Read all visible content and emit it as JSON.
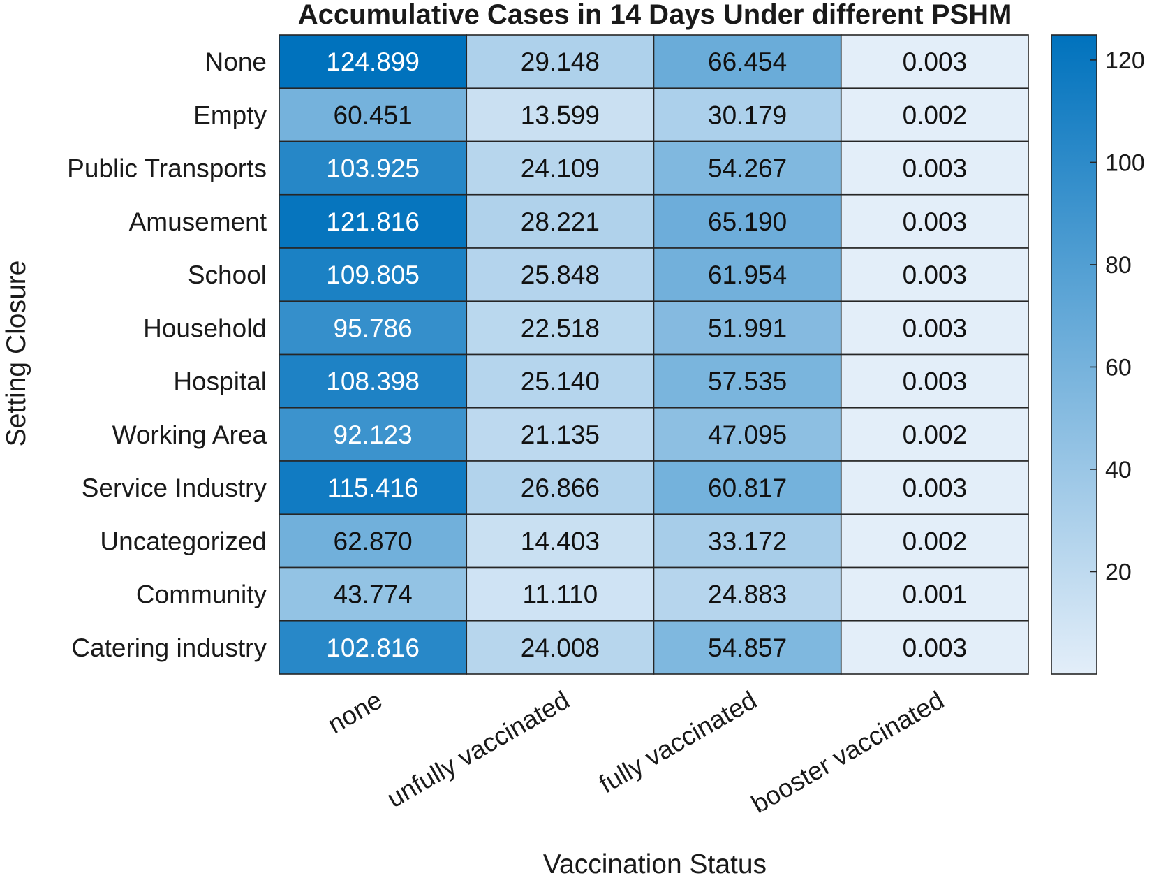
{
  "chart_data": {
    "type": "heatmap",
    "title": "Accumulative Cases in 14 Days Under different PSHM",
    "xlabel": "Vaccination Status",
    "ylabel": "Setting Closure",
    "columns": [
      "none",
      "unfully vaccinated",
      "fully vaccinated",
      "booster vaccinated"
    ],
    "rows": [
      "None",
      "Empty",
      "Public Transports",
      "Amusement",
      "School",
      "Household",
      "Hospital",
      "Working Area",
      "Service Industry",
      "Uncategorized",
      "Community",
      "Catering industry"
    ],
    "values": [
      [
        124.899,
        29.148,
        66.454,
        0.003
      ],
      [
        60.451,
        13.599,
        30.179,
        0.002
      ],
      [
        103.925,
        24.109,
        54.267,
        0.003
      ],
      [
        121.816,
        28.221,
        65.19,
        0.003
      ],
      [
        109.805,
        25.848,
        61.954,
        0.003
      ],
      [
        95.786,
        22.518,
        51.991,
        0.003
      ],
      [
        108.398,
        25.14,
        57.535,
        0.003
      ],
      [
        92.123,
        21.135,
        47.095,
        0.002
      ],
      [
        115.416,
        26.866,
        60.817,
        0.003
      ],
      [
        62.87,
        14.403,
        33.172,
        0.002
      ],
      [
        43.774,
        11.11,
        24.883,
        0.001
      ],
      [
        102.816,
        24.008,
        54.857,
        0.003
      ]
    ],
    "value_labels": [
      [
        "124.899",
        "29.148",
        "66.454",
        "0.003"
      ],
      [
        "60.451",
        "13.599",
        "30.179",
        "0.002"
      ],
      [
        "103.925",
        "24.109",
        "54.267",
        "0.003"
      ],
      [
        "121.816",
        "28.221",
        "65.190",
        "0.003"
      ],
      [
        "109.805",
        "25.848",
        "61.954",
        "0.003"
      ],
      [
        "95.786",
        "22.518",
        "51.991",
        "0.003"
      ],
      [
        "108.398",
        "25.140",
        "57.535",
        "0.003"
      ],
      [
        "92.123",
        "21.135",
        "47.095",
        "0.002"
      ],
      [
        "115.416",
        "26.866",
        "60.817",
        "0.003"
      ],
      [
        "62.870",
        "14.403",
        "33.172",
        "0.002"
      ],
      [
        "43.774",
        "11.110",
        "24.883",
        "0.001"
      ],
      [
        "102.816",
        "24.008",
        "54.857",
        "0.003"
      ]
    ],
    "colorbar": {
      "ticks": [
        20,
        40,
        60,
        80,
        100,
        120
      ],
      "tick_labels": [
        "20",
        "40",
        "60",
        "80",
        "100",
        "120"
      ],
      "range": [
        0.001,
        124.899
      ]
    },
    "colormap": {
      "low": "#e3eef9",
      "high": "#0072bd"
    },
    "grid": "on",
    "legend": "colorbar-right"
  }
}
